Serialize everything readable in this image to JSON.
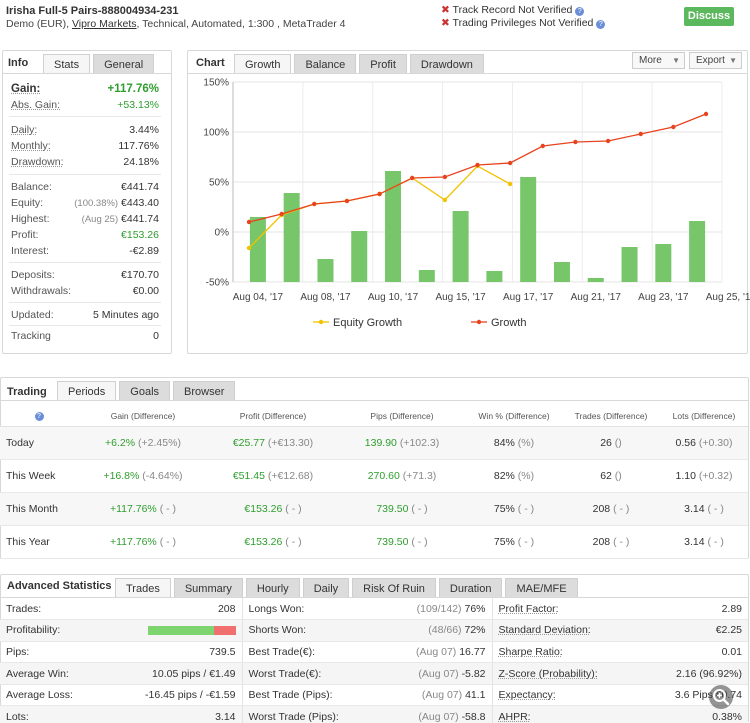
{
  "header": {
    "title": "Irisha Full-5 Pairs-888004934-231",
    "account_type": "Demo (EUR),",
    "broker": "Vipro Markets",
    "details": ", Technical, Automated, 1:300 , MetaTrader 4",
    "track_record": "Track Record Not Verified",
    "trading_privileges": "Trading Privileges Not Verified",
    "discuss_button": "Discuss"
  },
  "info_panel": {
    "title": "Info",
    "tabs": [
      "Stats",
      "General"
    ],
    "gain_label": "Gain:",
    "gain_value": "+117.76%",
    "abs_gain_label": "Abs. Gain:",
    "abs_gain_value": "+53.13%",
    "daily_label": "Daily:",
    "daily_value": "3.44%",
    "monthly_label": "Monthly:",
    "monthly_value": "117.76%",
    "drawdown_label": "Drawdown:",
    "drawdown_value": "24.18%",
    "balance_label": "Balance:",
    "balance_value": "€441.74",
    "equity_label": "Equity:",
    "equity_note": "(100.38%)",
    "equity_value": "€443.40",
    "highest_label": "Highest:",
    "highest_note": "(Aug 25)",
    "highest_value": "€441.74",
    "profit_label": "Profit:",
    "profit_value": "€153.26",
    "interest_label": "Interest:",
    "interest_value": "-€2.89",
    "deposits_label": "Deposits:",
    "deposits_value": "€170.70",
    "withdrawals_label": "Withdrawals:",
    "withdrawals_value": "€0.00",
    "updated_label": "Updated:",
    "updated_value": "5 Minutes ago",
    "tracking_label": "Tracking",
    "tracking_value": "0"
  },
  "chart_panel": {
    "title": "Chart",
    "tabs": [
      "Growth",
      "Balance",
      "Profit",
      "Drawdown"
    ],
    "more_label": "More",
    "export_label": "Export"
  },
  "chart_data": {
    "type": "bar",
    "title": "",
    "xlabel": "",
    "ylabel": "",
    "ylim": [
      -50,
      150
    ],
    "yticks": [
      "150%",
      "100%",
      "50%",
      "0%",
      "-50%"
    ],
    "ytick_values": [
      150,
      100,
      50,
      0,
      -50
    ],
    "xtick_labels": [
      "Aug 04, '17",
      "Aug 08, '17",
      "Aug 10, '17",
      "Aug 15, '17",
      "Aug 17, '17",
      "Aug 21, '17",
      "Aug 23, '17",
      "Aug 25, '17"
    ],
    "xtick_index": [
      0.5,
      2.5,
      4.5,
      6.5,
      8.5,
      10.5,
      12.5,
      14.5
    ],
    "bars": [
      15,
      39,
      -27,
      1,
      61,
      -38,
      21,
      -39,
      55,
      -30,
      -46,
      -15,
      -12,
      11
    ],
    "bar_index": [
      0.5,
      1.5,
      2.5,
      3.5,
      4.5,
      5.5,
      6.5,
      7.5,
      8.5,
      9.5,
      10.5,
      11.5,
      12.5,
      13.5
    ],
    "bar_color": "#77c66a",
    "series": [
      {
        "name": "Equity Growth",
        "color": "#f2c200",
        "x": [
          0,
          1,
          2,
          3,
          4,
          5,
          6,
          7,
          8
        ],
        "values": [
          -16,
          17,
          28,
          31,
          38,
          54,
          32,
          66,
          48
        ]
      },
      {
        "name": "Growth",
        "color": "#e8431f",
        "x": [
          0,
          1,
          2,
          3,
          4,
          5,
          6,
          7,
          8,
          9,
          10,
          11,
          12,
          13,
          14
        ],
        "values": [
          10,
          18,
          28,
          31,
          38,
          54,
          55,
          67,
          69,
          86,
          90,
          91,
          98,
          105,
          118
        ]
      }
    ],
    "legend": [
      "Equity Growth",
      "Growth"
    ],
    "legend_position": "bottom",
    "grid": true
  },
  "trading_panel": {
    "title": "Trading",
    "tabs": [
      "Periods",
      "Goals",
      "Browser"
    ],
    "columns": [
      "Gain (Difference)",
      "Profit (Difference)",
      "Pips (Difference)",
      "Win % (Difference)",
      "Trades (Difference)",
      "Lots (Difference)"
    ],
    "rows": [
      {
        "period": "Today",
        "gain": "+6.2%",
        "gain_diff": "(+2.45%)",
        "profit": "€25.77",
        "profit_diff": "(+€13.30)",
        "pips": "139.90",
        "pips_diff": "(+102.3)",
        "win": "84%",
        "win_diff": "(%)",
        "trades": "26",
        "trades_diff": "()",
        "lots": "0.56",
        "lots_diff": "(+0.30)"
      },
      {
        "period": "This Week",
        "gain": "+16.8%",
        "gain_diff": "(-4.64%)",
        "profit": "€51.45",
        "profit_diff": "(+€12.68)",
        "pips": "270.60",
        "pips_diff": "(+71.3)",
        "win": "82%",
        "win_diff": "(%)",
        "trades": "62",
        "trades_diff": "()",
        "lots": "1.10",
        "lots_diff": "(+0.32)"
      },
      {
        "period": "This Month",
        "gain": "+117.76%",
        "gain_diff": "( - )",
        "profit": "€153.26",
        "profit_diff": "( - )",
        "pips": "739.50",
        "pips_diff": "( - )",
        "win": "75%",
        "win_diff": "( - )",
        "trades": "208",
        "trades_diff": "( - )",
        "lots": "3.14",
        "lots_diff": "( - )"
      },
      {
        "period": "This Year",
        "gain": "+117.76%",
        "gain_diff": "( - )",
        "profit": "€153.26",
        "profit_diff": "( - )",
        "pips": "739.50",
        "pips_diff": "( - )",
        "win": "75%",
        "win_diff": "( - )",
        "trades": "208",
        "trades_diff": "( - )",
        "lots": "3.14",
        "lots_diff": "( - )"
      }
    ]
  },
  "advanced_panel": {
    "title": "Advanced Statistics",
    "tabs": [
      "Trades",
      "Summary",
      "Hourly",
      "Daily",
      "Risk Of Ruin",
      "Duration",
      "MAE/MFE"
    ],
    "profitability_label": "Profitability:",
    "profitability_win_fraction": 0.75,
    "win_color": "#7ed56f",
    "loss_color": "#f07070",
    "rows": [
      {
        "l1": "Trades:",
        "v1": "208",
        "l2": "Longs Won:",
        "n2": "(109/142)",
        "v2": "76%",
        "l3": "Profit Factor:",
        "v3": "2.89"
      },
      {
        "l1": "Profitability:",
        "v1": "",
        "l2": "Shorts Won:",
        "n2": "(48/66)",
        "v2": "72%",
        "l3": "Standard Deviation:",
        "v3": "€2.25"
      },
      {
        "l1": "Pips:",
        "v1": "739.5",
        "l2": "Best Trade(€):",
        "n2": "(Aug 07)",
        "v2": "16.77",
        "l3": "Sharpe Ratio:",
        "v3": "0.01"
      },
      {
        "l1": "Average Win:",
        "v1": "10.05 pips / €1.49",
        "l2": "Worst Trade(€):",
        "n2": "(Aug 07)",
        "v2": "-5.82",
        "l3": "Z-Score (Probability):",
        "v3": "2.16 (96.92%)"
      },
      {
        "l1": "Average Loss:",
        "v1": "-16.45 pips / -€1.59",
        "l2": "Best Trade (Pips):",
        "n2": "(Aug 07)",
        "v2": "41.1",
        "l3": "Expectancy:",
        "v3": "3.6 Pips €0.74"
      },
      {
        "l1": "Lots:",
        "v1": "3.14",
        "l2": "Worst Trade (Pips):",
        "n2": "(Aug 07)",
        "v2": "-58.8",
        "l3": "AHPR:",
        "v3": "0.38%"
      }
    ]
  },
  "icons": {
    "cross": "cross-icon",
    "help": "help-icon",
    "zoom": "zoom-in-icon"
  }
}
